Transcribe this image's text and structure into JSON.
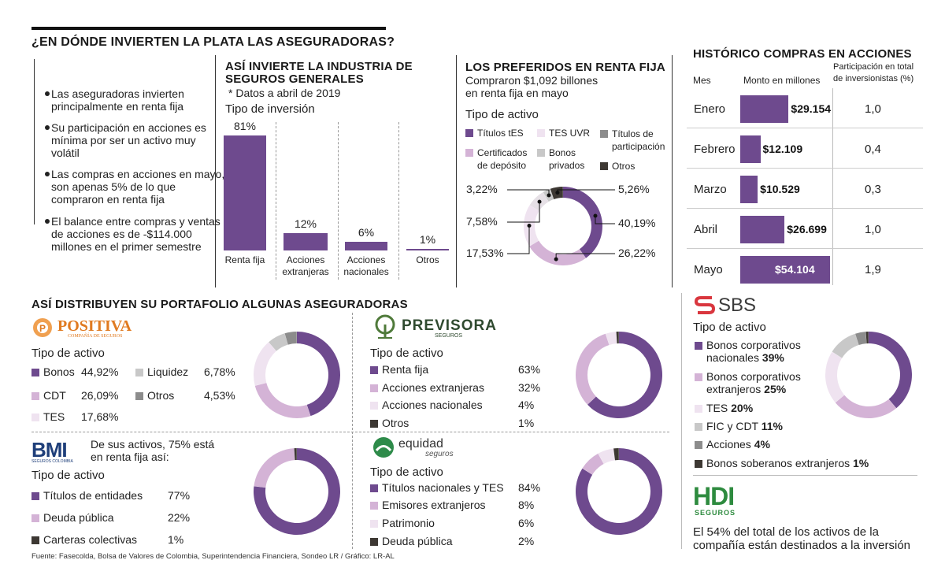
{
  "colors": {
    "c1": "#6e4a8e",
    "c2": "#d4b3d6",
    "c3": "#efe3f0",
    "c4": "#c8c8c8",
    "c5": "#8c8c8c",
    "c6": "#3d3833"
  },
  "main_title": "¿EN DÓNDE INVIERTEN LA PLATA LAS ASEGURADORAS?",
  "bullets": [
    "Las aseguradoras invierten principalmente en renta fija",
    "Su participación en acciones es mínima por ser un activo muy volátil",
    "Las compras en acciones en mayo, son apenas 5% de lo que compraron en renta fija",
    "El balance entre compras y ventas de acciones es de -$114.000 millones en el primer semestre"
  ],
  "industry": {
    "title_line1": "ASÍ INVIERTE LA INDUSTRIA DE",
    "title_line2": "SEGUROS GENERALES",
    "subtitle": "* Datos a abril de 2019",
    "axis_label": "Tipo de inversión"
  },
  "fixed_income": {
    "title": "LOS PREFERIDOS EN RENTA FIJA",
    "subtitle_line1": "Compraron $1,092 billones",
    "subtitle_line2": "en renta fija en mayo",
    "legend_title": "Tipo de activo",
    "legend": [
      "Títulos tES",
      "TES UVR",
      "Títulos de",
      "participación",
      "Certificados",
      "de depósito",
      "Bonos",
      "privados",
      "Otros"
    ]
  },
  "history": {
    "title": "HISTÓRICO COMPRAS EN ACCIONES",
    "col_month": "Mes",
    "col_amount": "Monto en millones",
    "col_share_line1": "Participación en total",
    "col_share_line2": "de inversionistas (%)"
  },
  "portfolio_title": "ASÍ DISTRIBUYEN SU PORTAFOLIO ALGUNAS ASEGURADORAS",
  "positiva": {
    "logo": "POSITIVA",
    "logo_sub": "COMPAÑÍA DE SEGUROS",
    "legend_title": "Tipo de activo",
    "items": [
      {
        "label": "Bonos",
        "value": "44,92%"
      },
      {
        "label": "CDT",
        "value": "26,09%"
      },
      {
        "label": "TES",
        "value": "17,68%"
      },
      {
        "label": "Liquidez",
        "value": "6,78%"
      },
      {
        "label": "Otros",
        "value": "4,53%"
      }
    ]
  },
  "previsora": {
    "logo": "PREVISORA",
    "logo_sub": "SEGUROS",
    "legend_title": "Tipo de activo",
    "items": [
      {
        "label": "Renta fija",
        "value": "63%"
      },
      {
        "label": "Acciones extranjeras",
        "value": "32%"
      },
      {
        "label": "Acciones nacionales",
        "value": "4%"
      },
      {
        "label": "Otros",
        "value": "1%"
      }
    ]
  },
  "bmi": {
    "logo": "BMI",
    "logo_sub": "SEGUROS COLOMBIA",
    "note_line1": "De sus activos, 75% está",
    "note_line2": "en renta fija así:",
    "legend_title": "Tipo de activo",
    "items": [
      {
        "label": "Títulos de entidades",
        "value": "77%"
      },
      {
        "label": "Deuda pública",
        "value": "22%"
      },
      {
        "label": "Carteras colectivas",
        "value": "1%"
      }
    ]
  },
  "equidad": {
    "logo": "equidad",
    "logo_sub": "seguros",
    "legend_title": "Tipo de activo",
    "items": [
      {
        "label": "Títulos nacionales y TES",
        "value": "84%"
      },
      {
        "label": "Emisores extranjeros",
        "value": "8%"
      },
      {
        "label": "Patrimonio",
        "value": "6%"
      },
      {
        "label": "Deuda pública",
        "value": "2%"
      }
    ]
  },
  "sbs": {
    "logo": "SBS",
    "legend_title": "Tipo de activo",
    "items": [
      {
        "line1": "Bonos corporativos",
        "line2": "nacionales",
        "value": "39%"
      },
      {
        "line1": "Bonos corporativos",
        "line2": "extranjeros",
        "value": "25%"
      },
      {
        "line1": "TES",
        "value": "20%"
      },
      {
        "line1": "FIC y CDT",
        "value": "11%"
      },
      {
        "line1": "Acciones",
        "value": "4%"
      },
      {
        "line1": "Bonos soberanos extranjeros",
        "value": "1%"
      }
    ]
  },
  "hdi": {
    "logo": "HDI",
    "logo_sub": "SEGUROS",
    "note_line1": "El 54% del total de los activos de la",
    "note_line2": "compañía están destinados a la inversión"
  },
  "source": "Fuente: Fasecolda, Bolsa de Valores de Colombia, Superintendencia Financiera, Sondeo LR / Gráfico: LR-AL",
  "chart_data": [
    {
      "id": "industry",
      "type": "bar",
      "title": "ASÍ INVIERTE LA INDUSTRIA DE SEGUROS GENERALES",
      "xlabel": "Tipo de inversión",
      "ylabel": "%",
      "categories": [
        "Renta fija",
        "Acciones extranjeras",
        "Acciones nacionales",
        "Otros"
      ],
      "values": [
        81,
        12,
        6,
        1
      ],
      "value_labels": [
        "81%",
        "12%",
        "6%",
        "1%"
      ],
      "ylim": [
        0,
        100
      ]
    },
    {
      "id": "fixed_income",
      "type": "pie",
      "title": "LOS PREFERIDOS EN RENTA FIJA",
      "categories": [
        "Títulos tES",
        "TES UVR",
        "Títulos de participación",
        "Certificados de depósito",
        "Bonos privados",
        "Otros"
      ],
      "values": [
        40.19,
        26.22,
        17.53,
        7.58,
        3.22,
        5.26
      ],
      "value_labels": [
        "40,19%",
        "26,22%",
        "17,53%",
        "7,58%",
        "3,22%",
        "5,26%"
      ]
    },
    {
      "id": "history",
      "type": "bar",
      "title": "HISTÓRICO COMPRAS EN ACCIONES",
      "categories": [
        "Enero",
        "Febrero",
        "Marzo",
        "Abril",
        "Mayo"
      ],
      "values": [
        29154,
        12109,
        10529,
        26699,
        54104
      ],
      "value_labels": [
        "$29.154",
        "$12.109",
        "$10.529",
        "$26.699",
        "$54.104"
      ],
      "participation": [
        "1,0",
        "0,4",
        "0,3",
        "1,0",
        "1,9"
      ],
      "xlabel": "Monto en millones",
      "ylabel": "Mes"
    },
    {
      "id": "positiva",
      "type": "pie",
      "title": "Positiva",
      "categories": [
        "Bonos",
        "CDT",
        "TES",
        "Liquidez",
        "Otros"
      ],
      "values": [
        44.92,
        26.09,
        17.68,
        6.78,
        4.53
      ]
    },
    {
      "id": "previsora",
      "type": "pie",
      "title": "Previsora",
      "categories": [
        "Renta fija",
        "Acciones extranjeras",
        "Acciones nacionales",
        "Otros"
      ],
      "values": [
        63,
        32,
        4,
        1
      ]
    },
    {
      "id": "bmi",
      "type": "pie",
      "title": "BMI",
      "categories": [
        "Títulos de entidades",
        "Deuda pública",
        "Carteras colectivas"
      ],
      "values": [
        77,
        22,
        1
      ]
    },
    {
      "id": "equidad",
      "type": "pie",
      "title": "Equidad",
      "categories": [
        "Títulos nacionales y TES",
        "Emisores extranjeros",
        "Patrimonio",
        "Deuda pública"
      ],
      "values": [
        84,
        8,
        6,
        2
      ]
    },
    {
      "id": "sbs",
      "type": "pie",
      "title": "SBS",
      "categories": [
        "Bonos corporativos nacionales",
        "Bonos corporativos extranjeros",
        "TES",
        "FIC y CDT",
        "Acciones",
        "Bonos soberanos extranjeros"
      ],
      "values": [
        39,
        25,
        20,
        11,
        4,
        1
      ]
    }
  ]
}
